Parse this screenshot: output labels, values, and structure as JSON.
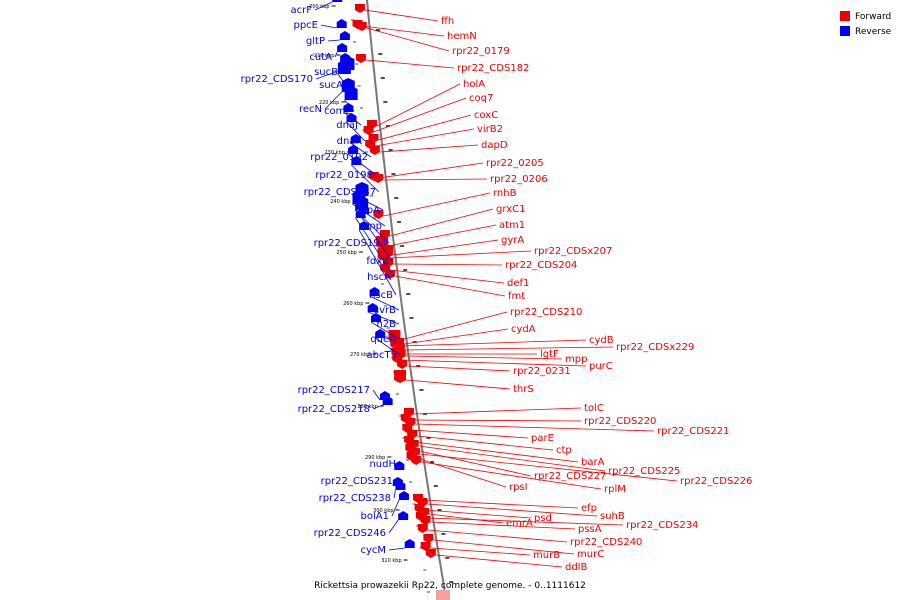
{
  "colors": {
    "forward": "#ee0000",
    "reverse": "#0000ee",
    "backbone": "#777777"
  },
  "legend": [
    {
      "label": "Forward",
      "color": "#ee0000"
    },
    {
      "label": "Reverse",
      "color": "#0000ee"
    }
  ],
  "caption": "Rickettsia prowazekii Rp22, complete genome. - 0..1111612",
  "ticks": [
    "200 kbp",
    "210 kbp",
    "220 kbp",
    "230 kbp",
    "240 kbp",
    "250 kbp",
    "260 kbp",
    "270 kbp",
    "280 kbp",
    "290 kbp",
    "300 kbp",
    "310 kbp"
  ],
  "reverse_genes": [
    "acrF",
    "ppcE",
    "gltP",
    "cutA",
    "sucB",
    "rpr22_CDS170",
    "sucA",
    "recN",
    "comL",
    "dnaJ",
    "dnaK",
    "rpr22_0192",
    "rpr22_0198",
    "rpr22_CDS187",
    "uspA",
    "imp",
    "rpr22_CDS193",
    "fdxB",
    "hscA",
    "hscB",
    "uvrB",
    "n2B",
    "queA",
    "abcT3",
    "rpr22_CDS217",
    "rpr22_CDS218",
    "nudH",
    "rpr22_CDS231",
    "rpr22_CDS238",
    "bolA1",
    "rpr22_CDS246",
    "cycM"
  ],
  "forward_genes": [
    "ffh",
    "hemN",
    "rpr22_0179",
    "rpr22_CDS182",
    "holA",
    "coq7",
    "coxC",
    "virB2",
    "dapD",
    "rpr22_0205",
    "rpr22_0206",
    "rnhB",
    "grxC1",
    "atm1",
    "gyrA",
    "rpr22_CDSx207",
    "rpr22_CDS204",
    "def1",
    "fmt",
    "rpr22_CDS210",
    "cydA",
    "cydB",
    "rpr22_CDSx229",
    "lgtF",
    "mpp",
    "purC",
    "rpr22_0231",
    "thrS",
    "tolC",
    "rpr22_CDS220",
    "rpr22_CDS221",
    "parE",
    "ctp",
    "barA",
    "rpr22_CDS225",
    "rpr22_CDS227",
    "rpr22_CDS226",
    "rpsI",
    "rplM",
    "efp",
    "suhB",
    "psd",
    "emrA",
    "rpr22_CDS234",
    "pssA",
    "rpr22_CDS240",
    "murC",
    "murB",
    "ddlB"
  ]
}
